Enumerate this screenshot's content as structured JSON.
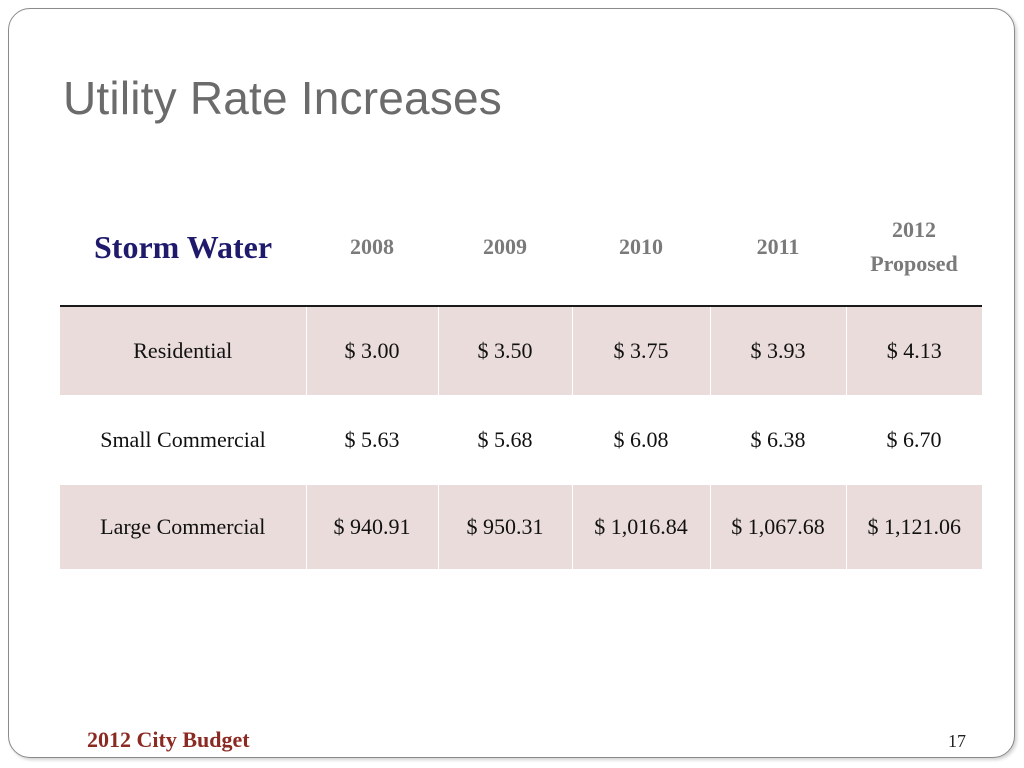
{
  "slide": {
    "title": "Utility Rate Increases",
    "footer": "2012 City Budget",
    "page_number": "17",
    "colors": {
      "title": "#6b6b6b",
      "section_label": "#1f1a6b",
      "row_shade": "#e9dcda",
      "footer": "#8b2a22"
    }
  },
  "table": {
    "section_label": "Storm Water",
    "columns": [
      {
        "line1": "2008",
        "line2": ""
      },
      {
        "line1": "2009",
        "line2": ""
      },
      {
        "line1": "2010",
        "line2": ""
      },
      {
        "line1": "2011",
        "line2": ""
      },
      {
        "line1": "2012",
        "line2": "Proposed"
      }
    ],
    "rows": [
      {
        "label": "Residential",
        "values": [
          "$ 3.00",
          "$ 3.50",
          "$ 3.75",
          "$ 3.93",
          "$ 4.13"
        ]
      },
      {
        "label": "Small Commercial",
        "values": [
          "$ 5.63",
          "$ 5.68",
          "$ 6.08",
          "$ 6.38",
          "$ 6.70"
        ]
      },
      {
        "label": "Large Commercial",
        "values": [
          "$ 940.91",
          "$ 950.31",
          "$ 1,016.84",
          "$ 1,067.68",
          "$ 1,121.06"
        ]
      }
    ]
  }
}
